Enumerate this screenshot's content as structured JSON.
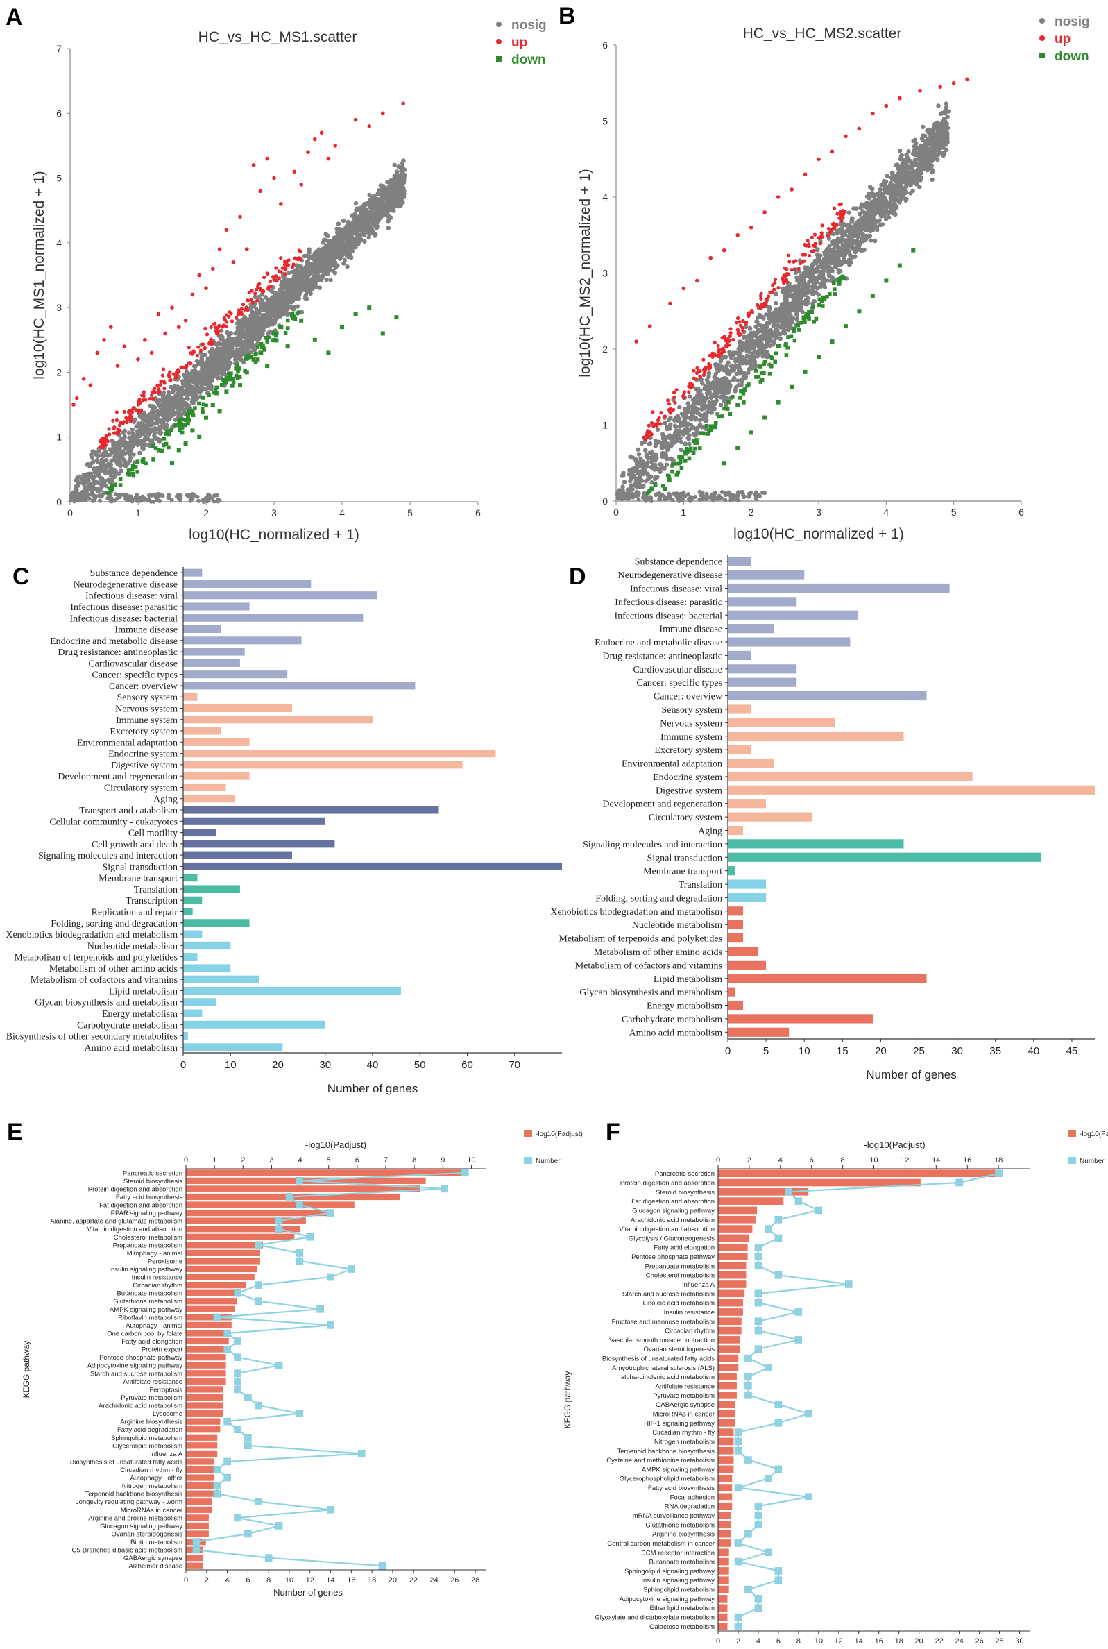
{
  "colors": {
    "nosig": "#808080",
    "up": "#e8282c",
    "down": "#2e8b2e",
    "blue": "#a2abcc",
    "salmon": "#f4b69c",
    "navy": "#6672a0",
    "teal": "#4bbba5",
    "sky": "#85d2e6",
    "coral": "#e8735f",
    "line": "#8fd3e3",
    "marker": "#8fd3e3"
  },
  "chart_data": [
    {
      "panel": "A",
      "type": "scatter",
      "title": "HC_vs_HC_MS1.scatter",
      "xlabel": "log10(HC_normalized + 1)",
      "ylabel": "log10(HC_MS1_normalized + 1)",
      "xlim": [
        0,
        6
      ],
      "ylim": [
        0,
        7
      ],
      "xticks": [
        "0",
        "1",
        "2",
        "3",
        "4",
        "5",
        "6"
      ],
      "yticks": [
        "0",
        "1",
        "2",
        "3",
        "4",
        "5",
        "6",
        "7"
      ],
      "legend": [
        "nosig",
        "up",
        "down"
      ],
      "series": [
        {
          "name": "up",
          "x": [
            0.05,
            0.1,
            0.2,
            0.3,
            0.5,
            0.6,
            0.4,
            0.7,
            0.8,
            1.0,
            1.1,
            1.2,
            1.3,
            1.4,
            1.5,
            1.6,
            1.7,
            1.8,
            1.9,
            2.0,
            2.1,
            2.2,
            2.3,
            2.4,
            2.5,
            2.6,
            2.7,
            2.8,
            2.9,
            3.0,
            3.1,
            3.3,
            3.4,
            3.5,
            3.6,
            3.7,
            3.8,
            3.9,
            4.2,
            4.4,
            4.6,
            4.9
          ],
          "y": [
            1.5,
            1.6,
            1.9,
            1.8,
            2.5,
            2.7,
            2.3,
            2.1,
            2.4,
            2.2,
            2.5,
            2.3,
            2.9,
            2.6,
            3.0,
            2.7,
            2.8,
            3.2,
            3.5,
            3.3,
            3.6,
            3.9,
            4.2,
            3.7,
            4.4,
            3.9,
            5.2,
            4.8,
            5.3,
            5.0,
            4.6,
            5.1,
            4.9,
            5.4,
            5.6,
            5.7,
            5.3,
            5.5,
            5.9,
            5.8,
            6.0,
            6.15
          ]
        },
        {
          "name": "down",
          "x": [
            1.5,
            1.6,
            1.7,
            1.8,
            1.9,
            2.0,
            2.1,
            2.2,
            2.3,
            2.4,
            2.5,
            2.6,
            2.7,
            2.8,
            2.9,
            3.0,
            3.2,
            3.4,
            3.6,
            3.8,
            4.0,
            4.2,
            4.4,
            4.6,
            4.8
          ],
          "y": [
            0.6,
            0.8,
            0.9,
            1.1,
            1.0,
            1.3,
            1.5,
            1.4,
            1.7,
            1.9,
            1.8,
            2.0,
            2.2,
            2.3,
            2.1,
            2.6,
            2.4,
            2.8,
            2.5,
            2.3,
            2.7,
            2.9,
            3.0,
            2.6,
            2.85
          ]
        }
      ]
    },
    {
      "panel": "B",
      "type": "scatter",
      "title": "HC_vs_HC_MS2.scatter",
      "xlabel": "log10(HC_normalized + 1)",
      "ylabel": "log10(HC_MS2_normalized + 1)",
      "xlim": [
        0,
        6
      ],
      "ylim": [
        0,
        6
      ],
      "xticks": [
        "0",
        "1",
        "2",
        "3",
        "4",
        "5",
        "6"
      ],
      "yticks": [
        "0",
        "1",
        "2",
        "3",
        "4",
        "5",
        "6"
      ],
      "legend": [
        "nosig",
        "up",
        "down"
      ],
      "series": [
        {
          "name": "up",
          "x": [
            0.3,
            0.5,
            0.8,
            1.0,
            1.2,
            1.4,
            1.6,
            1.8,
            2.0,
            2.2,
            2.4,
            2.6,
            2.8,
            3.0,
            3.2,
            3.4,
            3.6,
            3.8,
            4.0,
            4.2,
            4.5,
            4.8,
            5.0,
            5.2
          ],
          "y": [
            2.1,
            2.3,
            2.6,
            2.8,
            2.9,
            3.2,
            3.3,
            3.5,
            3.6,
            3.8,
            4.0,
            4.1,
            4.3,
            4.5,
            4.6,
            4.8,
            4.9,
            5.1,
            5.2,
            5.3,
            5.4,
            5.45,
            5.5,
            5.55
          ]
        },
        {
          "name": "down",
          "x": [
            1.6,
            1.8,
            2.0,
            2.2,
            2.4,
            2.6,
            2.8,
            3.0,
            3.2,
            3.4,
            3.6,
            3.8,
            4.0,
            4.2,
            4.4
          ],
          "y": [
            0.5,
            0.7,
            0.9,
            1.1,
            1.3,
            1.5,
            1.7,
            1.9,
            2.1,
            2.3,
            2.5,
            2.7,
            2.9,
            3.1,
            3.3
          ]
        }
      ]
    },
    {
      "panel": "C",
      "type": "bar",
      "orientation": "horizontal",
      "xlabel": "Number of genes",
      "xlim": [
        0,
        80
      ],
      "xticks": [
        "0",
        "10",
        "20",
        "30",
        "40",
        "50",
        "60",
        "70"
      ],
      "categories": [
        "Substance dependence",
        "Neurodegenerative disease",
        "Infectious disease: viral",
        "Infectious disease: parasitic",
        "Infectious disease: bacterial",
        "Immune disease",
        "Endocrine and metabolic disease",
        "Drug resistance: antineoplastic",
        "Cardiovascular disease",
        "Cancer: specific types",
        "Cancer: overview",
        "Sensory system",
        "Nervous system",
        "Immune system",
        "Excretory system",
        "Environmental adaptation",
        "Endocrine system",
        "Digestive system",
        "Development and regeneration",
        "Circulatory system",
        "Aging",
        "Transport and catabolism",
        "Cellular community - eukaryotes",
        "Cell motility",
        "Cell growth and death",
        "Signaling molecules and interaction",
        "Signal transduction",
        "Membrane transport",
        "Translation",
        "Transcription",
        "Replication and repair",
        "Folding, sorting and degradation",
        "Xenobiotics biodegradation and metabolism",
        "Nucleotide metabolism",
        "Metabolism of terpenoids and polyketides",
        "Metabolism of other amino acids",
        "Metabolism of cofactors and vitamins",
        "Lipid metabolism",
        "Glycan biosynthesis and metabolism",
        "Energy metabolism",
        "Carbohydrate metabolism",
        "Biosynthesis of other secondary metabolites",
        "Amino acid metabolism"
      ],
      "values": [
        4,
        27,
        41,
        14,
        38,
        8,
        25,
        13,
        12,
        22,
        49,
        3,
        23,
        40,
        8,
        14,
        66,
        59,
        14,
        9,
        11,
        54,
        30,
        7,
        32,
        23,
        80,
        3,
        12,
        4,
        2,
        14,
        4,
        10,
        3,
        10,
        16,
        46,
        7,
        4,
        30,
        1,
        21
      ],
      "groups": [
        11,
        10,
        6,
        5,
        11
      ]
    },
    {
      "panel": "D",
      "type": "bar",
      "orientation": "horizontal",
      "xlabel": "Number of genes",
      "xlim": [
        0,
        48
      ],
      "xticks": [
        "0",
        "5",
        "10",
        "15",
        "20",
        "25",
        "30",
        "35",
        "40",
        "45"
      ],
      "categories": [
        "Substance dependence",
        "Neurodegenerative disease",
        "Infectious disease: viral",
        "Infectious disease: parasitic",
        "Infectious disease: bacterial",
        "Immune disease",
        "Endocrine and metabolic disease",
        "Drug resistance: antineoplastic",
        "Cardiovascular disease",
        "Cancer: specific types",
        "Cancer: overview",
        "Sensory system",
        "Nervous system",
        "Immune system",
        "Excretory system",
        "Environmental adaptation",
        "Endocrine system",
        "Digestive system",
        "Development and regeneration",
        "Circulatory system",
        "Aging",
        "Signaling molecules and interaction",
        "Signal transduction",
        "Membrane transport",
        "Translation",
        "Folding, sorting and degradation",
        "Xenobiotics biodegradation and metabolism",
        "Nucleotide metabolism",
        "Metabolism of terpenoids and polyketides",
        "Metabolism of other amino acids",
        "Metabolism of cofactors and vitamins",
        "Lipid metabolism",
        "Glycan biosynthesis and metabolism",
        "Energy metabolism",
        "Carbohydrate metabolism",
        "Amino acid metabolism"
      ],
      "values": [
        3,
        10,
        29,
        9,
        17,
        6,
        16,
        3,
        9,
        9,
        26,
        3,
        14,
        23,
        3,
        6,
        32,
        48,
        5,
        11,
        2,
        23,
        41,
        1,
        5,
        5,
        2,
        2,
        2,
        4,
        5,
        26,
        1,
        2,
        19,
        8
      ],
      "groups": [
        11,
        10,
        0,
        3,
        2,
        10
      ]
    },
    {
      "panel": "E",
      "type": "bar+line",
      "ylabel": "KEGG pathway",
      "x2label": "-log10(Padjust)",
      "xlabel": "Number of genes",
      "x2lim": [
        0,
        10.5
      ],
      "x2ticks": [
        "0",
        "1",
        "2",
        "3",
        "4",
        "5",
        "6",
        "7",
        "8",
        "9",
        "10"
      ],
      "xlim": [
        0,
        29
      ],
      "xticks": [
        "0",
        "2",
        "4",
        "6",
        "8",
        "10",
        "12",
        "14",
        "16",
        "18",
        "20",
        "22",
        "24",
        "26",
        "28"
      ],
      "legend": [
        "-log10(Padjust)",
        "Number"
      ],
      "categories": [
        "Pancreatic secretion",
        "Steroid biosynthesis",
        "Protein digestion and absorption",
        "Fatty acid biosynthesis",
        "Fat digestion and absorption",
        "PPAR signaling pathway",
        "Alanine, aspartate and glutamate metabolism",
        "Vitamin digestion and absorption",
        "Cholesterol metabolism",
        "Propanoate metabolism",
        "Mitophagy - animal",
        "Peroxisome",
        "Insulin signaling pathway",
        "Insulin resistance",
        "Circadian rhythm",
        "Butanoate metabolism",
        "Glutathione metabolism",
        "AMPK signaling pathway",
        "Riboflavin metabolism",
        "Autophagy - animal",
        "One carbon pool by folate",
        "Fatty acid elongation",
        "Protein export",
        "Pentose phosphate pathway",
        "Adipocytokine signaling pathway",
        "Starch and sucrose metabolism",
        "Antifolate resistance",
        "Ferroptosis",
        "Pyruvate metabolism",
        "Arachidonic acid metabolism",
        "Lysosome",
        "Arginine biosynthesis",
        "Fatty acid degradation",
        "Sphingolipid metabolism",
        "Glycerolipid metabolism",
        "Influenza A",
        "Biosynthesis of unsaturated fatty acids",
        "Circadian rhythm - fly",
        "Autophagy - other",
        "Nitrogen metabolism",
        "Terpenoid backbone biosynthesis",
        "Longevity regulating pathway - worm",
        "MicroRNAs in cancer",
        "Arginine and proline metabolism",
        "Glucagon signaling pathway",
        "Ovarian steroidogenesis",
        "Biotin metabolism",
        "C5-Branched dibasic acid metabolism",
        "GABAergic synapse",
        "Alzheimer disease"
      ],
      "padjust": [
        9.9,
        8.4,
        8.2,
        7.5,
        5.9,
        5.0,
        4.2,
        4.0,
        3.8,
        2.7,
        2.6,
        2.6,
        2.5,
        2.4,
        2.1,
        1.8,
        1.8,
        1.7,
        1.6,
        1.6,
        1.5,
        1.5,
        1.4,
        1.4,
        1.4,
        1.4,
        1.4,
        1.3,
        1.3,
        1.3,
        1.3,
        1.2,
        1.2,
        1.1,
        1.1,
        1.1,
        1.0,
        1.0,
        1.0,
        1.0,
        1.0,
        0.9,
        0.9,
        0.8,
        0.8,
        0.8,
        0.7,
        0.6,
        0.6,
        0.6
      ],
      "number": [
        27,
        11,
        25,
        10,
        11,
        14,
        9,
        9,
        12,
        7,
        11,
        11,
        16,
        14,
        7,
        5,
        7,
        13,
        3,
        14,
        4,
        5,
        4,
        5,
        9,
        5,
        5,
        5,
        6,
        7,
        11,
        4,
        5,
        6,
        6,
        17,
        4,
        3,
        4,
        3,
        3,
        7,
        14,
        5,
        9,
        6,
        1,
        1,
        8,
        19
      ]
    },
    {
      "panel": "F",
      "type": "bar+line",
      "ylabel": "KEGG pathway",
      "x2label": "-log10(Padjust)",
      "xlabel": "Number of genes",
      "x2lim": [
        0,
        20
      ],
      "x2ticks": [
        "0",
        "2",
        "4",
        "6",
        "8",
        "10",
        "12",
        "14",
        "16",
        "18"
      ],
      "xlim": [
        0,
        31
      ],
      "xticks": [
        "0",
        "2",
        "4",
        "6",
        "8",
        "10",
        "12",
        "14",
        "16",
        "18",
        "20",
        "22",
        "24",
        "26",
        "28",
        "30"
      ],
      "legend": [
        "-log10(Padjust)",
        "Number"
      ],
      "categories": [
        "Pancreatic secretion",
        "Protein digestion and absorption",
        "Steroid biosynthesis",
        "Fat digestion and absorption",
        "Glucagon signaling pathway",
        "Arachidonic acid metabolism",
        "Vitamin digestion and absorption",
        "Glycolysis / Gluconeogenesis",
        "Fatty acid elongation",
        "Pentose phosphate pathway",
        "Propanoate metabolism",
        "Cholesterol metabolism",
        "Influenza A",
        "Starch and sucrose metabolism",
        "Linoleic acid metabolism",
        "Insulin resistance",
        "Fructose and mannose metabolism",
        "Circadian rhythm",
        "Vascular smooth muscle contraction",
        "Ovarian steroidogenesis",
        "Biosynthesis of unsaturated fatty acids",
        "Amyotrophic lateral sclerosis (ALS)",
        "alpha-Linolenic acid metabolism",
        "Antifolate resistance",
        "Pyruvate metabolism",
        "GABAergic synapse",
        "MicroRNAs in cancer",
        "HIF-1 signaling pathway",
        "Circadian rhythm - fly",
        "Nitrogen metabolism",
        "Terpenoid backbone biosynthesis",
        "Cysteine and methionine metabolism",
        "AMPK signaling pathway",
        "Glycerophospholipid metabolism",
        "Fatty acid biosynthesis",
        "Focal adhesion",
        "RNA degradation",
        "mRNA surveillance pathway",
        "Glutathione metabolism",
        "Arginine biosynthesis",
        "Central carbon metabolism in cancer",
        "ECM-receptor interaction",
        "Butanoate metabolism",
        "Sphingolipid signaling pathway",
        "Insulin signaling pathway",
        "Sphingolipid metabolism",
        "Adipocytokine signaling pathway",
        "Ether lipid metabolism",
        "Glyoxylate and dicarboxylate metabolism",
        "Galactose metabolism"
      ],
      "padjust": [
        17.8,
        13.0,
        5.8,
        4.2,
        2.5,
        2.4,
        2.2,
        2.0,
        1.9,
        1.9,
        1.8,
        1.8,
        1.8,
        1.7,
        1.6,
        1.6,
        1.5,
        1.5,
        1.4,
        1.4,
        1.3,
        1.3,
        1.2,
        1.2,
        1.2,
        1.1,
        1.1,
        1.1,
        1.0,
        1.0,
        1.0,
        1.0,
        1.0,
        0.9,
        0.9,
        0.9,
        0.9,
        0.8,
        0.8,
        0.8,
        0.8,
        0.7,
        0.7,
        0.7,
        0.7,
        0.7,
        0.6,
        0.6,
        0.6,
        0.6
      ],
      "number": [
        28,
        24,
        7,
        8,
        10,
        6,
        5,
        6,
        4,
        4,
        4,
        6,
        13,
        4,
        4,
        8,
        4,
        4,
        8,
        4,
        3,
        5,
        3,
        3,
        3,
        6,
        9,
        6,
        2,
        2,
        2,
        3,
        6,
        5,
        2,
        9,
        4,
        4,
        4,
        3,
        2,
        5,
        2,
        6,
        6,
        3,
        4,
        4,
        2,
        2
      ]
    }
  ]
}
